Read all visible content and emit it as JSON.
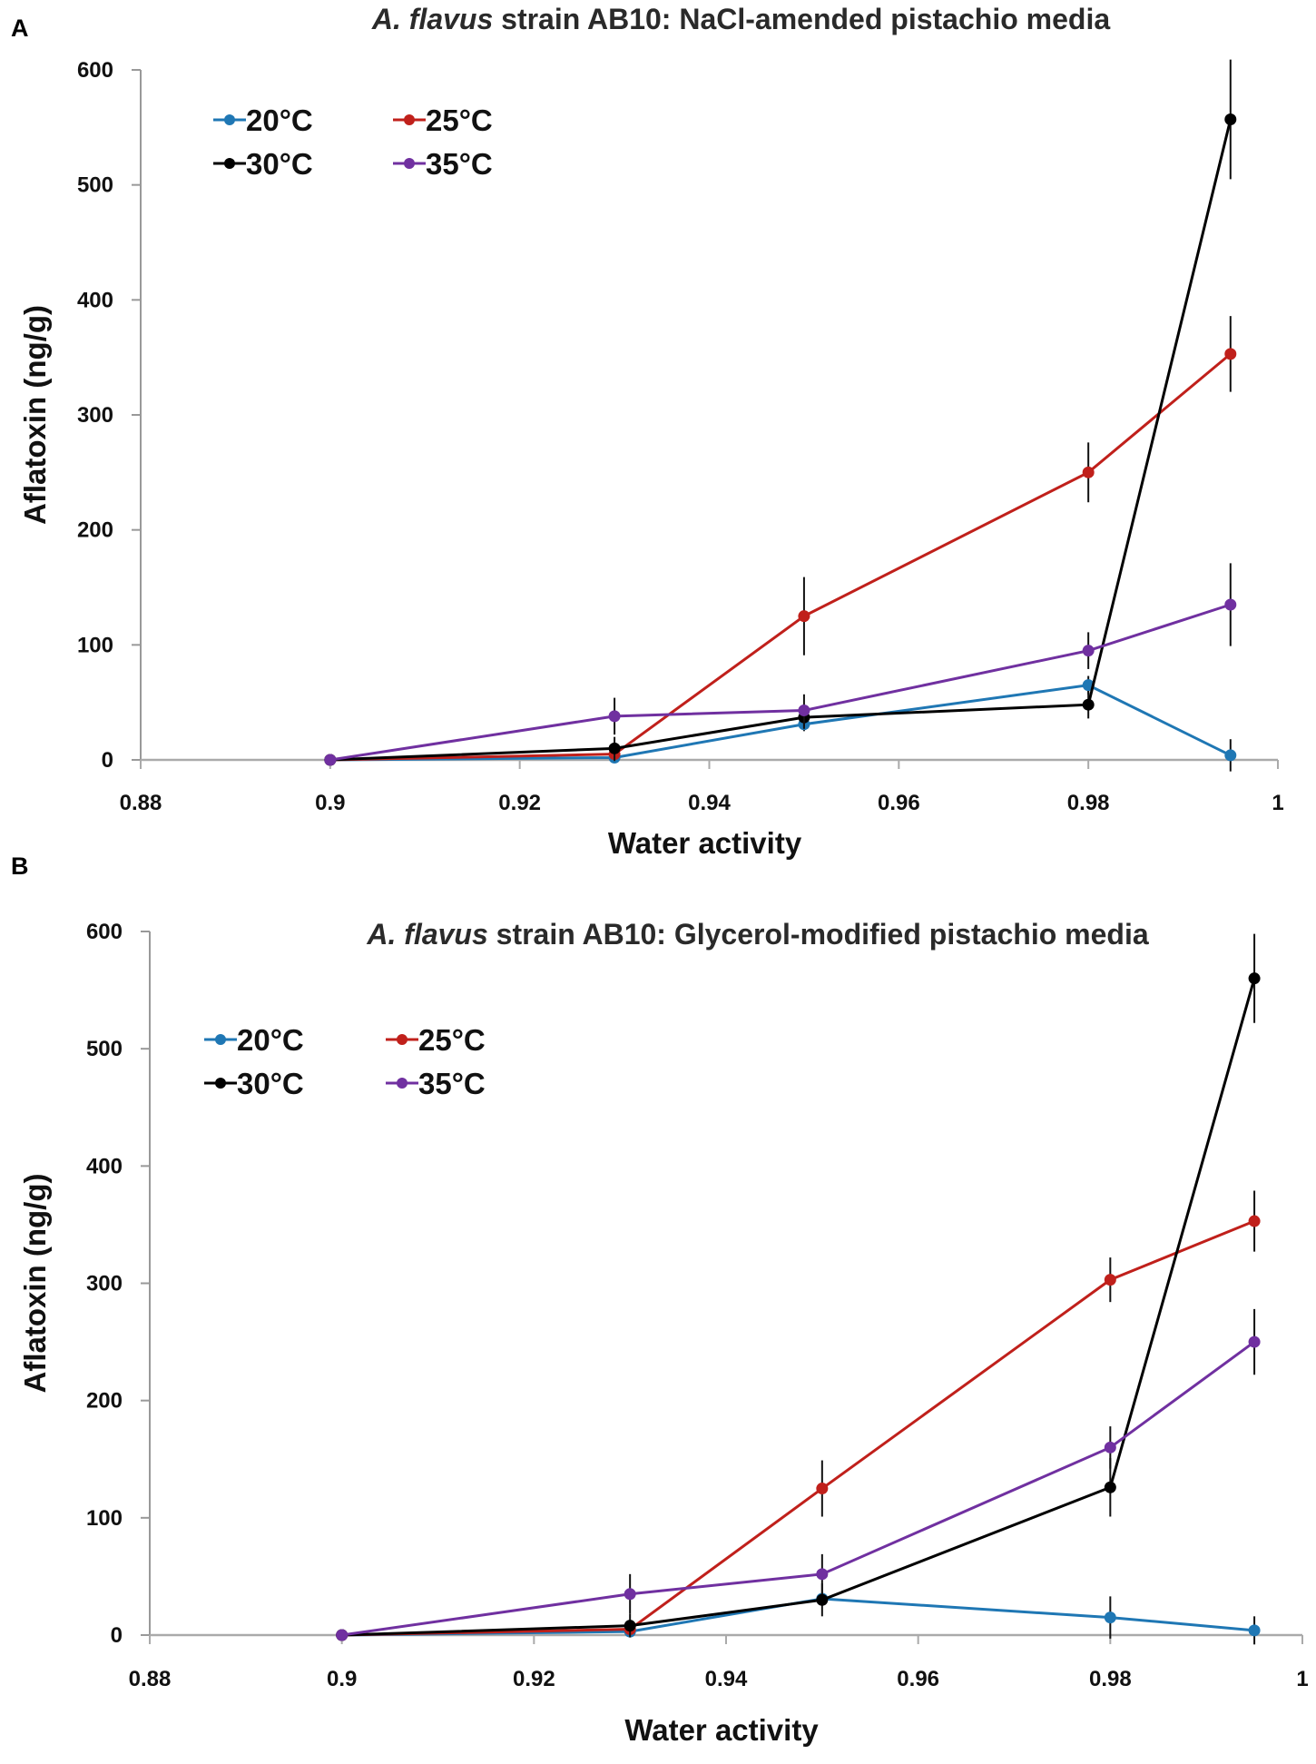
{
  "chart_data": [
    {
      "type": "line",
      "panel": "A",
      "title_italic": "A. flavus",
      "title_rest": " strain AB10: NaCl-amended pistachio media",
      "xlabel": "Water activity",
      "ylabel": "Aflatoxin (ng/g)",
      "xlim": [
        0.88,
        1
      ],
      "ylim": [
        0,
        600
      ],
      "xticks": [
        0.88,
        0.9,
        0.92,
        0.94,
        0.96,
        0.98,
        1
      ],
      "xtick_labels": [
        "0.88",
        "0.9",
        "0.92",
        "0.94",
        "0.96",
        "0.98",
        "1"
      ],
      "yticks": [
        0,
        100,
        200,
        300,
        400,
        500,
        600
      ],
      "ytick_labels": [
        "0",
        "100",
        "200",
        "300",
        "400",
        "500",
        "600"
      ],
      "series": [
        {
          "name": "20°C",
          "color": "#1f77b4",
          "x": [
            0.9,
            0.93,
            0.95,
            0.98,
            0.995
          ],
          "y": [
            0,
            2,
            31,
            65,
            4
          ],
          "err": [
            0,
            3,
            6,
            8,
            14
          ]
        },
        {
          "name": "25°C",
          "color": "#c0201b",
          "x": [
            0.9,
            0.93,
            0.95,
            0.98,
            0.995
          ],
          "y": [
            0,
            5,
            125,
            250,
            353
          ],
          "err": [
            0,
            6,
            34,
            26,
            33
          ]
        },
        {
          "name": "30°C",
          "color": "#000000",
          "x": [
            0.9,
            0.93,
            0.95,
            0.98,
            0.995
          ],
          "y": [
            0,
            10,
            37,
            48,
            557
          ],
          "err": [
            0,
            10,
            10,
            12,
            52
          ]
        },
        {
          "name": "35°C",
          "color": "#7030a0",
          "x": [
            0.9,
            0.93,
            0.95,
            0.98,
            0.995
          ],
          "y": [
            0,
            38,
            43,
            95,
            135
          ],
          "err": [
            0,
            16,
            14,
            16,
            36
          ]
        }
      ]
    },
    {
      "type": "line",
      "panel": "B",
      "title_italic": "A. flavus",
      "title_rest": " strain AB10: Glycerol-modified pistachio media",
      "xlabel": "Water activity",
      "ylabel": "Aflatoxin (ng/g)",
      "xlim": [
        0.88,
        1
      ],
      "ylim": [
        0,
        600
      ],
      "xticks": [
        0.88,
        0.9,
        0.92,
        0.94,
        0.96,
        0.98,
        1
      ],
      "xtick_labels": [
        "0.88",
        "0.9",
        "0.92",
        "0.94",
        "0.96",
        "0.98",
        "1"
      ],
      "yticks": [
        0,
        100,
        200,
        300,
        400,
        500,
        600
      ],
      "ytick_labels": [
        "0",
        "100",
        "200",
        "300",
        "400",
        "500",
        "600"
      ],
      "series": [
        {
          "name": "20°C",
          "color": "#1f77b4",
          "x": [
            0.9,
            0.93,
            0.95,
            0.98,
            0.995
          ],
          "y": [
            0,
            3,
            31,
            15,
            4
          ],
          "err": [
            0,
            3,
            5,
            18,
            12
          ]
        },
        {
          "name": "25°C",
          "color": "#c0201b",
          "x": [
            0.9,
            0.93,
            0.95,
            0.98,
            0.995
          ],
          "y": [
            0,
            5,
            125,
            303,
            353
          ],
          "err": [
            0,
            5,
            24,
            19,
            26
          ]
        },
        {
          "name": "30°C",
          "color": "#000000",
          "x": [
            0.9,
            0.93,
            0.95,
            0.98,
            0.995
          ],
          "y": [
            0,
            8,
            30,
            126,
            560
          ],
          "err": [
            0,
            10,
            14,
            25,
            38
          ]
        },
        {
          "name": "35°C",
          "color": "#7030a0",
          "x": [
            0.9,
            0.93,
            0.95,
            0.98,
            0.995
          ],
          "y": [
            0,
            35,
            52,
            160,
            250
          ],
          "err": [
            0,
            17,
            17,
            18,
            28
          ]
        }
      ]
    }
  ]
}
